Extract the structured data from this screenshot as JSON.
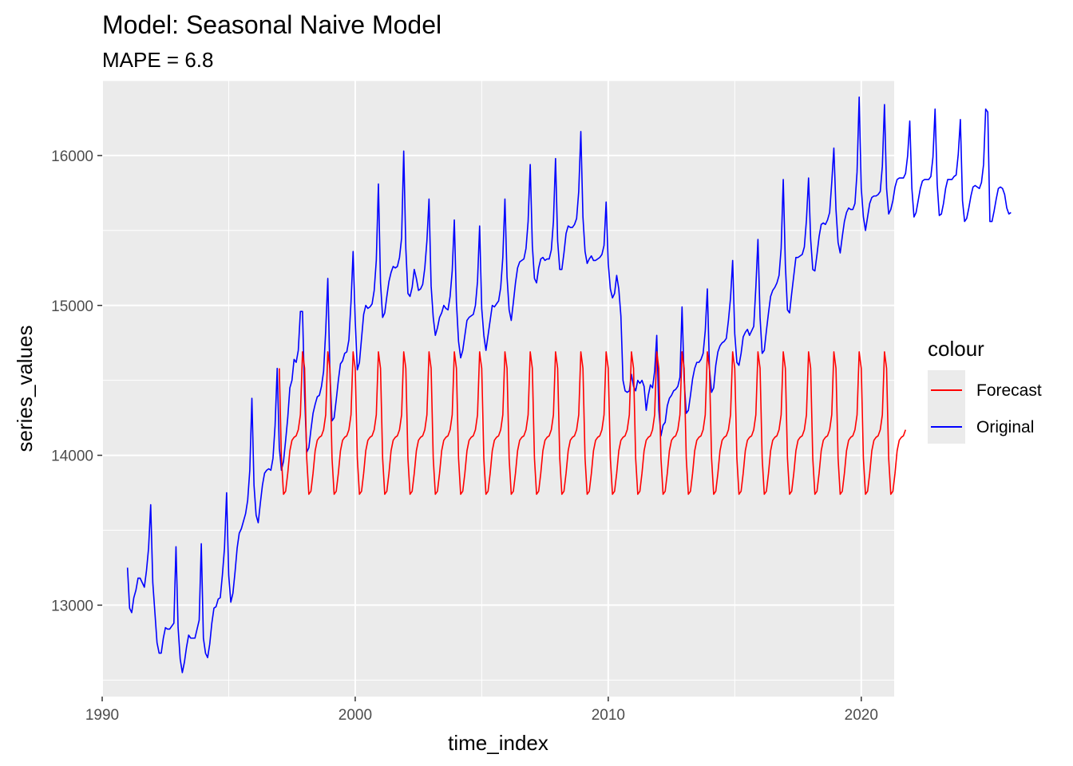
{
  "chart_data": {
    "type": "line",
    "title": "Model:  Seasonal Naive Model",
    "subtitle": "MAPE = 6.8",
    "xlabel": "time_index",
    "ylabel": "series_values",
    "xlim": [
      1990.0,
      2021.3
    ],
    "ylim": [
      12390,
      16500
    ],
    "x_ticks": [
      1990,
      2000,
      2010,
      2020
    ],
    "y_ticks": [
      13000,
      14000,
      15000,
      16000
    ],
    "grid": true,
    "legend": {
      "title": "colour",
      "position": "right",
      "entries": [
        {
          "label": "Forecast",
          "color": "#ff0000"
        },
        {
          "label": "Original",
          "color": "#0000ff"
        }
      ]
    },
    "series": [
      {
        "name": "Original",
        "color": "#0000ff",
        "start": 1991.0,
        "frequency": 12,
        "values": [
          13250,
          12980,
          12950,
          13050,
          13100,
          13180,
          13180,
          13150,
          13120,
          13230,
          13380,
          13670,
          13150,
          12950,
          12750,
          12680,
          12680,
          12780,
          12850,
          12840,
          12840,
          12860,
          12880,
          13390,
          12850,
          12640,
          12550,
          12620,
          12720,
          12800,
          12780,
          12780,
          12780,
          12840,
          12900,
          13410,
          12780,
          12680,
          12650,
          12740,
          12880,
          12980,
          12990,
          13040,
          13050,
          13200,
          13380,
          13750,
          13200,
          13020,
          13080,
          13220,
          13380,
          13480,
          13510,
          13560,
          13610,
          13700,
          13900,
          14380,
          13800,
          13600,
          13550,
          13680,
          13800,
          13880,
          13900,
          13910,
          13900,
          13980,
          14200,
          14580,
          14050,
          13900,
          13960,
          14100,
          14250,
          14450,
          14500,
          14640,
          14620,
          14700,
          14960,
          14960,
          14400,
          14020,
          14050,
          14170,
          14280,
          14340,
          14390,
          14400,
          14460,
          14560,
          14830,
          15180,
          14550,
          14230,
          14250,
          14370,
          14500,
          14610,
          14630,
          14680,
          14690,
          14770,
          15020,
          15360,
          14900,
          14570,
          14620,
          14780,
          14940,
          15000,
          14980,
          14990,
          15010,
          15100,
          15300,
          15810,
          15150,
          14920,
          14950,
          15060,
          15160,
          15220,
          15260,
          15250,
          15260,
          15320,
          15450,
          16030,
          15380,
          15080,
          15060,
          15120,
          15240,
          15180,
          15100,
          15110,
          15140,
          15250,
          15430,
          15710,
          15130,
          14920,
          14800,
          14850,
          14920,
          14950,
          15000,
          14980,
          14970,
          15060,
          15230,
          15570,
          15020,
          14760,
          14650,
          14700,
          14800,
          14900,
          14920,
          14930,
          14940,
          15000,
          15160,
          15530,
          14980,
          14800,
          14700,
          14800,
          14900,
          15000,
          14990,
          15010,
          15030,
          15120,
          15320,
          15710,
          15190,
          14970,
          14900,
          15020,
          15150,
          15250,
          15290,
          15300,
          15310,
          15380,
          15560,
          15940,
          15400,
          15180,
          15150,
          15250,
          15310,
          15320,
          15300,
          15310,
          15310,
          15370,
          15560,
          15980,
          15430,
          15240,
          15240,
          15350,
          15480,
          15530,
          15520,
          15520,
          15540,
          15580,
          15760,
          16160,
          15590,
          15360,
          15280,
          15310,
          15330,
          15300,
          15300,
          15310,
          15320,
          15340,
          15400,
          15690,
          15280,
          15110,
          15050,
          15080,
          15200,
          15110,
          14930,
          14500,
          14430,
          14420,
          14430,
          14540,
          14460,
          14430,
          14500,
          14480,
          14500,
          14460,
          14300,
          14400,
          14470,
          14450,
          14560,
          14800,
          14300,
          14130,
          14200,
          14220,
          14330,
          14380,
          14400,
          14430,
          14440,
          14460,
          14520,
          14990,
          14500,
          14280,
          14300,
          14400,
          14510,
          14580,
          14620,
          14620,
          14640,
          14680,
          14830,
          15110,
          14580,
          14420,
          14450,
          14600,
          14690,
          14730,
          14750,
          14760,
          14780,
          14900,
          15050,
          15300,
          14810,
          14620,
          14600,
          14680,
          14790,
          14820,
          14840,
          14800,
          14830,
          14860,
          15120,
          15440,
          14920,
          14680,
          14700,
          14830,
          14950,
          15060,
          15100,
          15120,
          15150,
          15200,
          15380,
          15840,
          15270,
          14970,
          14950,
          15080,
          15200,
          15320,
          15320,
          15330,
          15340,
          15390,
          15570,
          15850,
          15440,
          15240,
          15230,
          15340,
          15460,
          15540,
          15550,
          15540,
          15570,
          15620,
          15820,
          16050,
          15640,
          15420,
          15350,
          15460,
          15560,
          15620,
          15650,
          15640,
          15640,
          15680,
          15890,
          16390,
          15780,
          15590,
          15500,
          15590,
          15680,
          15720,
          15730,
          15730,
          15740,
          15760,
          15930,
          16340,
          15780,
          15610,
          15640,
          15700,
          15790,
          15840,
          15850,
          15850,
          15850,
          15880,
          16000,
          16230,
          15780,
          15590,
          15620,
          15700,
          15780,
          15830,
          15840,
          15840,
          15840,
          15860,
          15990,
          16310,
          15810,
          15600,
          15610,
          15680,
          15780,
          15840,
          15840,
          15840,
          15860,
          15870,
          16010,
          16240,
          15700,
          15560,
          15580,
          15650,
          15730,
          15790,
          15800,
          15790,
          15780,
          15820,
          15940,
          16310,
          16290,
          15560,
          15560,
          15630,
          15710,
          15780,
          15790,
          15780,
          15740,
          15650,
          15610,
          15620
        ]
      },
      {
        "name": "Forecast",
        "color": "#ff0000",
        "start": 1997.0,
        "frequency": 12,
        "pattern": [
          14580,
          13980,
          13740,
          13760,
          13880,
          14030,
          14100,
          14120,
          14130,
          14170,
          14270,
          14690
        ],
        "cycles": 24,
        "tail": [
          14580,
          13980,
          13740,
          13760,
          13880,
          14030,
          14100,
          14120,
          14130,
          14170
        ]
      }
    ]
  }
}
